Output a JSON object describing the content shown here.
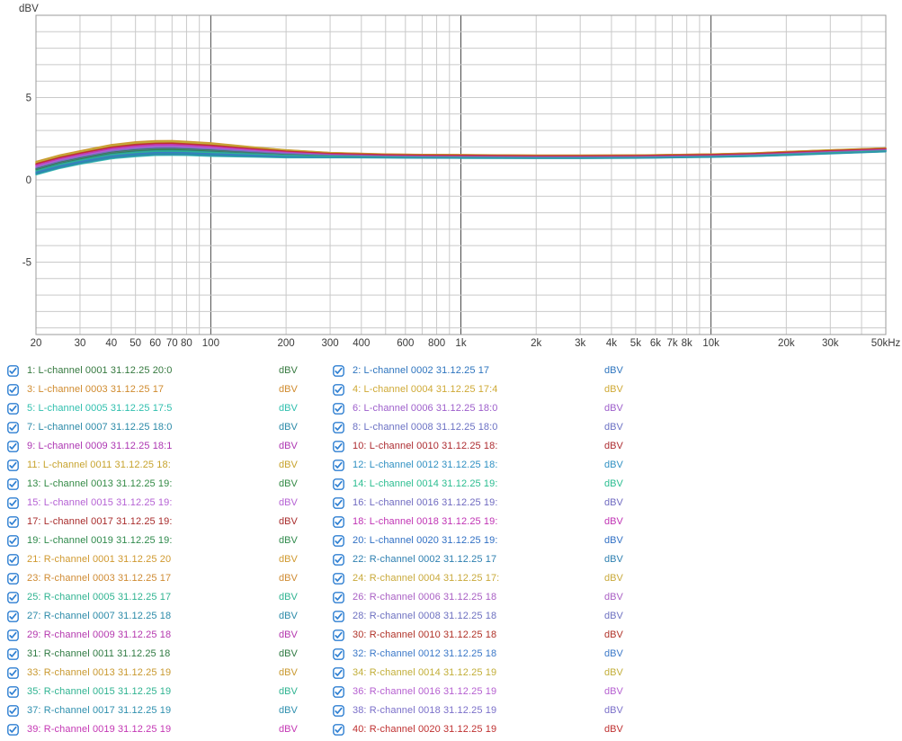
{
  "window": {
    "background": "#ffffff"
  },
  "chart": {
    "y_axis_unit_label": "dBV",
    "axis_text_color": "#3a3a3a",
    "grid": {
      "minor_color": "#c9c9c9",
      "major_color": "#4a4a4a",
      "border_color": "#9b9b9b",
      "major_lines_hz": [
        100,
        1000,
        10000
      ]
    },
    "y_ticks": [
      {
        "db": 5,
        "label": "5"
      },
      {
        "db": 0,
        "label": "0"
      },
      {
        "db": -5,
        "label": "-5"
      }
    ],
    "x_ticks": [
      {
        "f": 20,
        "label": "20"
      },
      {
        "f": 30,
        "label": "30"
      },
      {
        "f": 40,
        "label": "40"
      },
      {
        "f": 50,
        "label": "50"
      },
      {
        "f": 60,
        "label": "60"
      },
      {
        "f": 70,
        "label": "70"
      },
      {
        "f": 80,
        "label": "80"
      },
      {
        "f": 100,
        "label": "100"
      },
      {
        "f": 200,
        "label": "200"
      },
      {
        "f": 300,
        "label": "300"
      },
      {
        "f": 400,
        "label": "400"
      },
      {
        "f": 600,
        "label": "600"
      },
      {
        "f": 800,
        "label": "800"
      },
      {
        "f": 1000,
        "label": "1k"
      },
      {
        "f": 2000,
        "label": "2k"
      },
      {
        "f": 3000,
        "label": "3k"
      },
      {
        "f": 4000,
        "label": "4k"
      },
      {
        "f": 5000,
        "label": "5k"
      },
      {
        "f": 6000,
        "label": "6k"
      },
      {
        "f": 7000,
        "label": "7k"
      },
      {
        "f": 8000,
        "label": "8k"
      },
      {
        "f": 10000,
        "label": "10k"
      },
      {
        "f": 20000,
        "label": "20k"
      },
      {
        "f": 30000,
        "label": "30k"
      },
      {
        "f": 50000,
        "label": "50kHz"
      }
    ]
  },
  "chart_data": {
    "type": "line",
    "title": "",
    "ylabel": "dBV",
    "x_unit": "Hz",
    "x_scale": "log",
    "xlim": [
      20,
      50000
    ],
    "ylim": [
      -9.4,
      10
    ],
    "grid": true,
    "legend_position": "bottom",
    "x": [
      20,
      25,
      30,
      40,
      50,
      60,
      70,
      80,
      100,
      150,
      200,
      300,
      500,
      700,
      1000,
      2000,
      3000,
      5000,
      7000,
      10000,
      15000,
      20000,
      30000,
      50000
    ],
    "base_values": [
      0.7,
      1.1,
      1.35,
      1.7,
      1.85,
      1.92,
      1.93,
      1.9,
      1.83,
      1.68,
      1.58,
      1.5,
      1.45,
      1.43,
      1.42,
      1.4,
      1.4,
      1.41,
      1.44,
      1.47,
      1.53,
      1.6,
      1.7,
      1.82
    ],
    "spread_weights": [
      1,
      1,
      1,
      1.05,
      1.1,
      1.1,
      1.1,
      1.05,
      1,
      0.75,
      0.6,
      0.4,
      0.3,
      0.28,
      0.28,
      0.25,
      0.25,
      0.25,
      0.25,
      0.25,
      0.27,
      0.3,
      0.3,
      0.3
    ],
    "series_value_rule": "value[i] = base_values[i] + offset * spread_weights[i]  (dBV)",
    "series": [
      {
        "id": 1,
        "label": "1: L-channel 0001 31.12.25 20:0",
        "color": "#35793f",
        "offset": -0.1,
        "checked": true
      },
      {
        "id": 2,
        "label": "2: L-channel 0002 31.12.25 17",
        "color": "#2d74be",
        "offset": -0.26,
        "checked": true
      },
      {
        "id": 3,
        "label": "3: L-channel 0003 31.12.25 17",
        "color": "#d08b2e",
        "offset": 0.38,
        "checked": true
      },
      {
        "id": 4,
        "label": "4: L-channel 0004 31.12.25 17:4",
        "color": "#cfa935",
        "offset": 0.3,
        "checked": true
      },
      {
        "id": 5,
        "label": "5: L-channel 0005 31.12.25 17:5",
        "color": "#2fbfae",
        "offset": -0.4,
        "checked": true
      },
      {
        "id": 6,
        "label": "6: L-channel 0006 31.12.25 18:0",
        "color": "#9d5ecb",
        "offset": 0.06,
        "checked": true
      },
      {
        "id": 7,
        "label": "7: L-channel 0007 31.12.25 18:0",
        "color": "#2b8aa8",
        "offset": -0.34,
        "checked": true
      },
      {
        "id": 8,
        "label": "8: L-channel 0008 31.12.25 18:0",
        "color": "#6b71c4",
        "offset": -0.06,
        "checked": true
      },
      {
        "id": 9,
        "label": "9: L-channel 0009 31.12.25 18:1",
        "color": "#ad36b2",
        "offset": 0.14,
        "checked": true
      },
      {
        "id": 10,
        "label": "10: L-channel 0010 31.12.25 18:",
        "color": "#ad2c31",
        "offset": 0.22,
        "checked": true
      },
      {
        "id": 11,
        "label": "11: L-channel 0011 31.12.25 18:",
        "color": "#c7a32d",
        "offset": 0.34,
        "checked": true
      },
      {
        "id": 12,
        "label": "12: L-channel 0012 31.12.25 18:",
        "color": "#2f90c2",
        "offset": -0.18,
        "checked": true
      },
      {
        "id": 13,
        "label": "13: L-channel 0013 31.12.25 19:",
        "color": "#338a45",
        "offset": -0.04,
        "checked": true
      },
      {
        "id": 14,
        "label": "14: L-channel 0014 31.12.25 19:",
        "color": "#2abd90",
        "offset": -0.28,
        "checked": true
      },
      {
        "id": 15,
        "label": "15: L-channel 0015 31.12.25 19:",
        "color": "#b562d4",
        "offset": 0.1,
        "checked": true
      },
      {
        "id": 16,
        "label": "16: L-channel 0016 31.12.25 19:",
        "color": "#6f6ac0",
        "offset": 0.02,
        "checked": true
      },
      {
        "id": 17,
        "label": "17: L-channel 0017 31.12.25 19:",
        "color": "#a82c2c",
        "offset": 0.26,
        "checked": true
      },
      {
        "id": 18,
        "label": "18: L-channel 0018 31.12.25 19:",
        "color": "#c033b4",
        "offset": 0.18,
        "checked": true
      },
      {
        "id": 19,
        "label": "19: L-channel 0019 31.12.25 19:",
        "color": "#2f8a4c",
        "offset": -0.08,
        "checked": true
      },
      {
        "id": 20,
        "label": "20: L-channel 0020 31.12.25 19:",
        "color": "#2f6fc4",
        "offset": -0.22,
        "checked": true
      },
      {
        "id": 21,
        "label": "21: R-channel 0001 31.12.25 20",
        "color": "#d0992f",
        "offset": 0.42,
        "checked": true
      },
      {
        "id": 22,
        "label": "22: R-channel 0002 31.12.25 17",
        "color": "#2d7fb0",
        "offset": -0.14,
        "checked": true
      },
      {
        "id": 23,
        "label": "23: R-channel 0003 31.12.25 17",
        "color": "#cf8b33",
        "offset": 0.36,
        "checked": true
      },
      {
        "id": 24,
        "label": "24: R-channel 0004 31.12.25 17:",
        "color": "#c9a93a",
        "offset": 0.32,
        "checked": true
      },
      {
        "id": 25,
        "label": "25: R-channel 0005 31.12.25 17",
        "color": "#2fb391",
        "offset": -0.2,
        "checked": true
      },
      {
        "id": 26,
        "label": "26: R-channel 0006 31.12.25 18",
        "color": "#a95fc4",
        "offset": 0.08,
        "checked": true
      },
      {
        "id": 27,
        "label": "27: R-channel 0007 31.12.25 18",
        "color": "#2b8aa8",
        "offset": -0.3,
        "checked": true
      },
      {
        "id": 28,
        "label": "28: R-channel 0008 31.12.25 18",
        "color": "#6d70c0",
        "offset": -0.02,
        "checked": true
      },
      {
        "id": 29,
        "label": "29: R-channel 0009 31.12.25 18",
        "color": "#b437ae",
        "offset": 0.16,
        "checked": true
      },
      {
        "id": 30,
        "label": "30: R-channel 0010 31.12.25 18",
        "color": "#b03228",
        "offset": 0.24,
        "checked": true
      },
      {
        "id": 31,
        "label": "31: R-channel 0011 31.12.25 18",
        "color": "#2f7a42",
        "offset": 0.0,
        "checked": true
      },
      {
        "id": 32,
        "label": "32: R-channel 0012 31.12.25 18",
        "color": "#3b78c8",
        "offset": -0.24,
        "checked": true
      },
      {
        "id": 33,
        "label": "33: R-channel 0013 31.12.25 19",
        "color": "#c9992f",
        "offset": 0.4,
        "checked": true
      },
      {
        "id": 34,
        "label": "34: R-channel 0014 31.12.25 19",
        "color": "#c2ae38",
        "offset": 0.36,
        "checked": true
      },
      {
        "id": 35,
        "label": "35: R-channel 0015 31.12.25 19",
        "color": "#2fb391",
        "offset": -0.16,
        "checked": true
      },
      {
        "id": 36,
        "label": "36: R-channel 0016 31.12.25 19",
        "color": "#b55fd0",
        "offset": 0.12,
        "checked": true
      },
      {
        "id": 37,
        "label": "37: R-channel 0017 31.12.25 19",
        "color": "#2e8fae",
        "offset": -0.36,
        "checked": true
      },
      {
        "id": 38,
        "label": "38: R-channel 0018 31.12.25 19",
        "color": "#7a6fc9",
        "offset": 0.04,
        "checked": true
      },
      {
        "id": 39,
        "label": "39: R-channel 0019 31.12.25 19",
        "color": "#c437b4",
        "offset": 0.2,
        "checked": true
      },
      {
        "id": 40,
        "label": "40: R-channel 0020 31.12.25 19",
        "color": "#bf3030",
        "offset": 0.28,
        "checked": true
      }
    ]
  },
  "legend": {
    "unit_label": "dBV",
    "checkbox_color": "#2e7fd2"
  }
}
